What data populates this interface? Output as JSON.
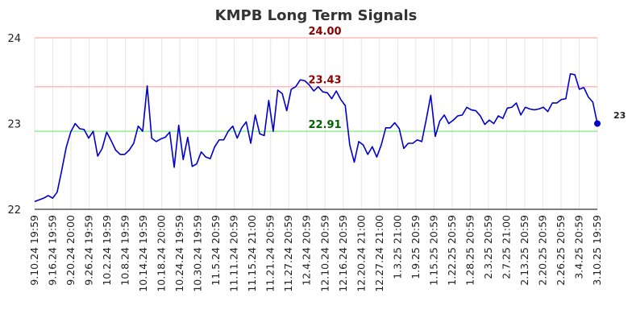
{
  "chart_data": {
    "type": "line",
    "title": "KMPB Long Term Signals",
    "xlabel": "",
    "ylabel": "",
    "ylim": [
      22,
      24
    ],
    "yticks": [
      "22",
      "23",
      "24"
    ],
    "grid": true,
    "xtick_labels": [
      "9.10.24 19:59",
      "9.16.24 19:59",
      "9.20.24 20:00",
      "9.26.24 19:59",
      "10.2.24 19:59",
      "10.8.24 19:59",
      "10.14.24 19:59",
      "10.18.24 20:00",
      "10.24.24 19:59",
      "10.30.24 19:59",
      "11.5.24 20:59",
      "11.11.24 20:59",
      "11.15.24 21:00",
      "11.21.24 20:59",
      "11.27.24 20:59",
      "12.4.24 20:59",
      "12.10.24 20:59",
      "12.16.24 20:59",
      "12.20.24 21:00",
      "12.27.24 21:00",
      "1.3.25 21:00",
      "1.9.25 20:59",
      "1.15.25 20:59",
      "1.22.25 20:59",
      "1.28.25 20:59",
      "2.3.25 20:59",
      "2.7.25 21:00",
      "2.13.25 20:59",
      "2.20.25 20:59",
      "2.26.25 20:59",
      "3.4.25 20:59",
      "3.10.25 19:59"
    ],
    "hlines": [
      {
        "label": "24.00",
        "value": 24.0,
        "color": "#ffbbbb",
        "label_color": "#8b0000"
      },
      {
        "label": "23.43",
        "value": 23.43,
        "color": "#ffbbbb",
        "label_color": "#8b0000"
      },
      {
        "label": "22.91",
        "value": 22.91,
        "color": "#90ee90",
        "label_color": "#006400"
      }
    ],
    "series_color": "#0000cc",
    "last_value_label": "23",
    "values": [
      22.09,
      22.11,
      22.13,
      22.16,
      22.13,
      22.2,
      22.45,
      22.72,
      22.9,
      23.0,
      22.94,
      22.93,
      22.83,
      22.91,
      22.62,
      22.71,
      22.9,
      22.8,
      22.69,
      22.64,
      22.64,
      22.69,
      22.77,
      22.97,
      22.91,
      23.44,
      22.83,
      22.79,
      22.82,
      22.84,
      22.9,
      22.49,
      22.98,
      22.58,
      22.84,
      22.5,
      22.53,
      22.67,
      22.61,
      22.59,
      22.73,
      22.81,
      22.81,
      22.91,
      22.97,
      22.83,
      22.95,
      23.02,
      22.77,
      23.1,
      22.88,
      22.86,
      23.27,
      22.91,
      23.39,
      23.35,
      23.15,
      23.4,
      23.43,
      23.51,
      23.5,
      23.45,
      23.38,
      23.43,
      23.37,
      23.36,
      23.29,
      23.38,
      23.28,
      23.21,
      22.75,
      22.55,
      22.79,
      22.75,
      22.64,
      22.73,
      22.61,
      22.75,
      22.95,
      22.95,
      23.01,
      22.94,
      22.71,
      22.77,
      22.77,
      22.81,
      22.79,
      23.05,
      23.33,
      22.85,
      23.03,
      23.1,
      23.0,
      23.04,
      23.09,
      23.1,
      23.19,
      23.16,
      23.15,
      23.09,
      22.99,
      23.04,
      23.0,
      23.09,
      23.06,
      23.18,
      23.19,
      23.24,
      23.1,
      23.19,
      23.17,
      23.16,
      23.17,
      23.19,
      23.14,
      23.24,
      23.24,
      23.28,
      23.29,
      23.58,
      23.57,
      23.4,
      23.42,
      23.31,
      23.25,
      23.0
    ]
  }
}
